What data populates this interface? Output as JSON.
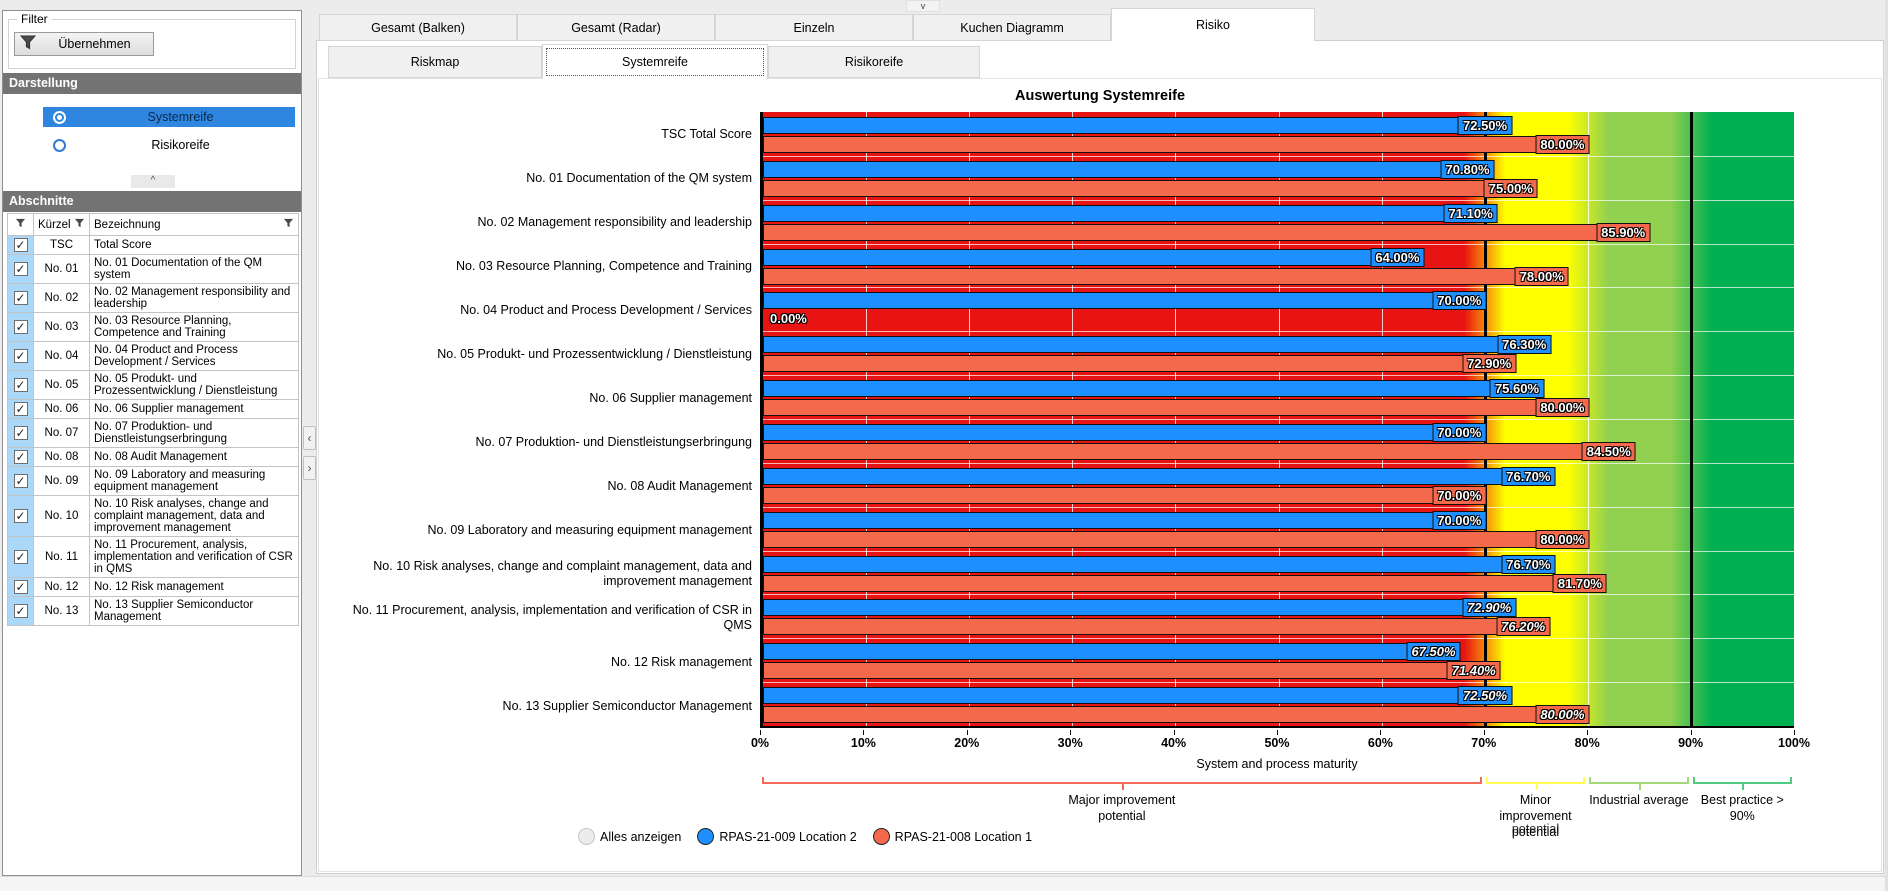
{
  "window": {
    "top_collapse_glyph": "v",
    "splitter_left": "‹",
    "splitter_right": "›"
  },
  "tabs_main": [
    {
      "label": "Gesamt (Balken)",
      "active": false
    },
    {
      "label": "Gesamt (Radar)",
      "active": false
    },
    {
      "label": "Einzeln",
      "active": false
    },
    {
      "label": "Kuchen Diagramm",
      "active": false
    },
    {
      "label": "Risiko",
      "active": true
    }
  ],
  "tabs_sub": [
    {
      "label": "Riskmap",
      "active": false
    },
    {
      "label": "Systemreife",
      "active": true
    },
    {
      "label": "Risikoreife",
      "active": false
    }
  ],
  "sidebar": {
    "filter_group_label": "Filter",
    "apply_button_label": "Übernehmen",
    "darstellung_header": "Darstellung",
    "display_options": [
      {
        "label": "Systemreife",
        "selected": true
      },
      {
        "label": "Risikoreife",
        "selected": false
      }
    ],
    "collapse_arrow": "^",
    "abschnitte_header": "Abschnitte",
    "table": {
      "columns": {
        "kuerzel": "Kürzel",
        "bezeichnung": "Bezeichnung"
      },
      "rows": [
        {
          "checked": true,
          "kuerzel": "TSC",
          "bezeichnung": "Total Score"
        },
        {
          "checked": true,
          "kuerzel": "No. 01",
          "bezeichnung": "No. 01 Documentation of the QM system"
        },
        {
          "checked": true,
          "kuerzel": "No. 02",
          "bezeichnung": "No. 02 Management responsibility and leadership"
        },
        {
          "checked": true,
          "kuerzel": "No. 03",
          "bezeichnung": "No. 03 Resource Planning, Competence and Training"
        },
        {
          "checked": true,
          "kuerzel": "No. 04",
          "bezeichnung": "No. 04 Product and Process Development / Services"
        },
        {
          "checked": true,
          "kuerzel": "No. 05",
          "bezeichnung": "No. 05 Produkt- und Prozessentwicklung / Dienstleistung"
        },
        {
          "checked": true,
          "kuerzel": "No. 06",
          "bezeichnung": "No. 06 Supplier management"
        },
        {
          "checked": true,
          "kuerzel": "No. 07",
          "bezeichnung": "No. 07 Produktion- und Dienstleistungserbringung"
        },
        {
          "checked": true,
          "kuerzel": "No. 08",
          "bezeichnung": "No. 08 Audit Management"
        },
        {
          "checked": true,
          "kuerzel": "No. 09",
          "bezeichnung": "No. 09 Laboratory and measuring equipment management"
        },
        {
          "checked": true,
          "kuerzel": "No. 10",
          "bezeichnung": "No. 10 Risk analyses, change and complaint management, data and improvement management"
        },
        {
          "checked": true,
          "kuerzel": "No. 11",
          "bezeichnung": "No. 11 Procurement, analysis, implementation and verification of CSR in QMS"
        },
        {
          "checked": true,
          "kuerzel": "No. 12",
          "bezeichnung": "No. 12 Risk management"
        },
        {
          "checked": true,
          "kuerzel": "No. 13",
          "bezeichnung": "No. 13 Supplier Semiconductor Management"
        }
      ]
    }
  },
  "chart_data": {
    "type": "bar",
    "orientation": "horizontal",
    "title": "Auswertung Systemreife",
    "xlabel": "System and process maturity",
    "xlim": [
      0,
      100
    ],
    "x_tick_step": 10,
    "x_tick_suffix": "%",
    "grid": true,
    "categories": [
      "TSC Total Score",
      "No. 01 Documentation of the QM system",
      "No. 02 Management responsibility and leadership",
      "No. 03 Resource Planning, Competence and Training",
      "No. 04 Product and Process Development / Services",
      "No. 05 Produkt- und Prozessentwicklung / Dienstleistung",
      "No. 06 Supplier management",
      "No. 07 Produktion- und Dienstleistungserbringung",
      "No. 08 Audit Management",
      "No. 09 Laboratory and measuring equipment management",
      "No. 10 Risk analyses, change and complaint management, data and improvement management",
      "No. 11 Procurement, analysis, implementation and verification of CSR in QMS",
      "No. 12 Risk management",
      "No. 13 Supplier Semiconductor Management"
    ],
    "italic_category_indices": [
      11,
      12,
      13
    ],
    "series": [
      {
        "name": "RPAS-21-009 Location 2",
        "color": "#1e8fff",
        "values": [
          72.5,
          70.8,
          71.1,
          64.0,
          70.0,
          76.3,
          75.6,
          70.0,
          76.7,
          70.0,
          76.7,
          72.9,
          67.5,
          72.5
        ]
      },
      {
        "name": "RPAS-21-008 Location 1",
        "color": "#f4694b",
        "values": [
          80.0,
          75.0,
          85.9,
          78.0,
          0.0,
          72.9,
          80.0,
          84.5,
          70.0,
          80.0,
          81.7,
          76.2,
          71.4,
          80.0
        ]
      }
    ],
    "background_zones": [
      {
        "color": "#e81313",
        "from": 0,
        "to": 70
      },
      {
        "color": "#ffff00",
        "from": 70,
        "to": 80
      },
      {
        "color": "#92d050",
        "from": 80,
        "to": 90
      },
      {
        "color": "#00b050",
        "from": 90,
        "to": 100
      }
    ],
    "threshold_lines": [
      70,
      90
    ],
    "annotations": [
      {
        "lines": [
          "Major improvement potential"
        ],
        "from": 0,
        "to": 70,
        "color": "#f4695a",
        "ghost_line": ""
      },
      {
        "lines": [
          "Minor",
          "improvement",
          "potential"
        ],
        "from": 70,
        "to": 80,
        "color": "#ffff54",
        "ghost_line": "potential"
      },
      {
        "lines": [
          "Industrial average"
        ],
        "from": 80,
        "to": 90,
        "color": "#a5d977",
        "ghost_line": ""
      },
      {
        "lines": [
          "Best practice >",
          "90%"
        ],
        "from": 90,
        "to": 100,
        "color": "#4ecb7f",
        "ghost_line": ""
      }
    ],
    "legend": [
      {
        "label": "Alles anzeigen",
        "color": "#ececec",
        "border": "#c6c6c6"
      },
      {
        "label": "RPAS-21-009 Location 2",
        "color": "#1e8fff",
        "border": "#222222"
      },
      {
        "label": "RPAS-21-008 Location 1",
        "color": "#f4694b",
        "border": "#222222"
      }
    ]
  }
}
